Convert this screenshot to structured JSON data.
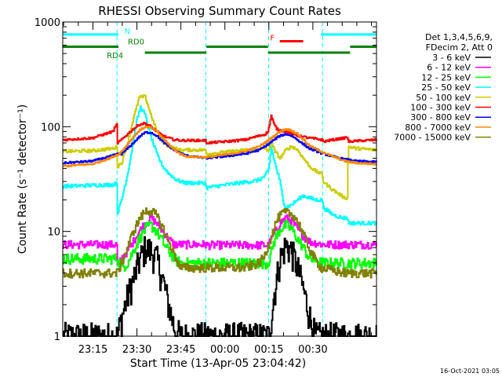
{
  "chart_data": {
    "type": "line",
    "title": "RHESSI Observing Summary Count Rates",
    "xlabel": "Start Time (13-Apr-05 23:04:42)",
    "ylabel": "Count Rate (s⁻¹ detector⁻¹)",
    "yscale": "log",
    "ylim": [
      1,
      1000
    ],
    "xlim_minutes": [
      0,
      107
    ],
    "x_ticks": [
      {
        "label": "23:15",
        "minute": 10.3
      },
      {
        "label": "23:30",
        "minute": 25.3
      },
      {
        "label": "23:45",
        "minute": 40.3
      },
      {
        "label": "00:00",
        "minute": 55.3
      },
      {
        "label": "00:15",
        "minute": 70.3
      },
      {
        "label": "00:30",
        "minute": 85.3
      }
    ],
    "y_ticks": [
      {
        "label": "1",
        "value": 1
      },
      {
        "label": "10",
        "value": 10
      },
      {
        "label": "100",
        "value": 100
      },
      {
        "label": "1000",
        "value": 1000
      }
    ],
    "legend_header": [
      "Det 1,3,4,5,6,9,",
      "FDecim 2, Att 0"
    ],
    "legend_position": "right",
    "footer_date": "16-Oct-2021 03:05",
    "flags": [
      {
        "name": "N",
        "label": "N",
        "color": "#00ffff",
        "level": 760,
        "segments": [
          [
            0,
            19
          ],
          [
            88,
            107
          ]
        ]
      },
      {
        "name": "F",
        "label": "F",
        "color": "#ff0000",
        "level": 655,
        "segments": [
          [
            74,
            82
          ]
        ]
      },
      {
        "name": "RD0",
        "label": "RD0",
        "color": "#008000",
        "level": 580,
        "segments": [
          [
            0,
            19
          ],
          [
            49,
            70
          ],
          [
            98,
            107
          ]
        ]
      },
      {
        "name": "RD4",
        "label": "RD4",
        "color": "#008000",
        "level": 510,
        "segments": [
          [
            28,
            49
          ],
          [
            70,
            98
          ]
        ]
      }
    ],
    "saa_lines_minutes": [
      0,
      18.5,
      48.8,
      70.2,
      88.6,
      107
    ],
    "series": [
      {
        "name": "3 - 6 keV",
        "color": "#000000",
        "noise": 0.35,
        "points": [
          [
            18.5,
            1
          ],
          [
            20,
            1.5
          ],
          [
            22,
            2.4
          ],
          [
            24,
            3.5
          ],
          [
            26,
            5.2
          ],
          [
            28,
            7
          ],
          [
            30,
            6.5
          ],
          [
            32,
            5.5
          ],
          [
            34,
            3.5
          ],
          [
            36,
            2
          ],
          [
            38,
            1.2
          ],
          [
            40,
            1
          ],
          [
            70.2,
            1
          ],
          [
            72,
            2.5
          ],
          [
            74,
            5.5
          ],
          [
            76,
            7.5
          ],
          [
            78,
            6.5
          ],
          [
            80,
            4.5
          ],
          [
            82,
            2.8
          ],
          [
            84,
            1.6
          ],
          [
            86,
            1
          ]
        ]
      },
      {
        "name": "6 - 12 keV",
        "color": "#ff00ff",
        "noise": 0.09,
        "points": [
          [
            0,
            7.5
          ],
          [
            18.4,
            7.5
          ],
          [
            18.6,
            4.6
          ],
          [
            20,
            5.5
          ],
          [
            22,
            6.5
          ],
          [
            24,
            8
          ],
          [
            26,
            10
          ],
          [
            28,
            12
          ],
          [
            30,
            13.5
          ],
          [
            32,
            12
          ],
          [
            34,
            10
          ],
          [
            36,
            8.5
          ],
          [
            38,
            7.5
          ],
          [
            48.7,
            7.5
          ],
          [
            49,
            7.4
          ],
          [
            70,
            7.4
          ],
          [
            72,
            9.5
          ],
          [
            74,
            12
          ],
          [
            76,
            13.5
          ],
          [
            78,
            12.5
          ],
          [
            80,
            10.5
          ],
          [
            82,
            9
          ],
          [
            84,
            8
          ],
          [
            88.5,
            7.5
          ],
          [
            107,
            7.5
          ]
        ]
      },
      {
        "name": "12 - 25 keV",
        "color": "#00ff00",
        "noise": 0.12,
        "points": [
          [
            0,
            5.5
          ],
          [
            18.5,
            5.5
          ],
          [
            20,
            4.5
          ],
          [
            22,
            5
          ],
          [
            24,
            6.5
          ],
          [
            26,
            8.5
          ],
          [
            28,
            10.5
          ],
          [
            30,
            11.5
          ],
          [
            32,
            10
          ],
          [
            34,
            8
          ],
          [
            36,
            6.5
          ],
          [
            38,
            5.5
          ],
          [
            40,
            5
          ],
          [
            48.8,
            5
          ],
          [
            70,
            5
          ],
          [
            72,
            8
          ],
          [
            74,
            10.5
          ],
          [
            76,
            11.5
          ],
          [
            78,
            10.5
          ],
          [
            80,
            8.5
          ],
          [
            82,
            7
          ],
          [
            84,
            5.5
          ],
          [
            88.5,
            5
          ],
          [
            107,
            5
          ]
        ]
      },
      {
        "name": "25 - 50 keV",
        "color": "#00ffff",
        "noise": 0.04,
        "points": [
          [
            0,
            27
          ],
          [
            17,
            28
          ],
          [
            18.4,
            29
          ],
          [
            18.6,
            15
          ],
          [
            20,
            20
          ],
          [
            22,
            35
          ],
          [
            23.5,
            60
          ],
          [
            25,
            110
          ],
          [
            26.5,
            155
          ],
          [
            28,
            130
          ],
          [
            30,
            80
          ],
          [
            32,
            55
          ],
          [
            34,
            42
          ],
          [
            36,
            36
          ],
          [
            38,
            32
          ],
          [
            40,
            30
          ],
          [
            42,
            29
          ],
          [
            44,
            29
          ],
          [
            46,
            29
          ],
          [
            48.7,
            29
          ],
          [
            48.9,
            26
          ],
          [
            52,
            27
          ],
          [
            56,
            28
          ],
          [
            60,
            29
          ],
          [
            64,
            30
          ],
          [
            67,
            31
          ],
          [
            69,
            34
          ],
          [
            70.3,
            40
          ],
          [
            71,
            65
          ],
          [
            72,
            48
          ],
          [
            73,
            38
          ],
          [
            74,
            30
          ],
          [
            75,
            20
          ],
          [
            76,
            17
          ],
          [
            78,
            18
          ],
          [
            80,
            20
          ],
          [
            82,
            22
          ],
          [
            84,
            21
          ],
          [
            86,
            20
          ],
          [
            88.5,
            20
          ],
          [
            88.7,
            17
          ],
          [
            92,
            14.5
          ],
          [
            95,
            13.5
          ],
          [
            97,
            13.5
          ],
          [
            97.3,
            12
          ],
          [
            107,
            12
          ]
        ]
      },
      {
        "name": "50 - 100 keV",
        "color": "#cccc00",
        "noise": 0.035,
        "points": [
          [
            0,
            58
          ],
          [
            10,
            59
          ],
          [
            17,
            62
          ],
          [
            18.4,
            64
          ],
          [
            18.6,
            42
          ],
          [
            20,
            45
          ],
          [
            22,
            70
          ],
          [
            24,
            120
          ],
          [
            26,
            190
          ],
          [
            28,
            195
          ],
          [
            30,
            130
          ],
          [
            32,
            90
          ],
          [
            34,
            72
          ],
          [
            36,
            65
          ],
          [
            38,
            62
          ],
          [
            40,
            60
          ],
          [
            48.7,
            60
          ],
          [
            48.9,
            55
          ],
          [
            55,
            57
          ],
          [
            62,
            60
          ],
          [
            67,
            62
          ],
          [
            69,
            62
          ],
          [
            70.2,
            58
          ],
          [
            71,
            75
          ],
          [
            72,
            60
          ],
          [
            74,
            50
          ],
          [
            76,
            60
          ],
          [
            78,
            65
          ],
          [
            80,
            60
          ],
          [
            82,
            50
          ],
          [
            84,
            42
          ],
          [
            86,
            38
          ],
          [
            88.5,
            35
          ],
          [
            88.7,
            30
          ],
          [
            92,
            25
          ],
          [
            96,
            21
          ],
          [
            97,
            21
          ],
          [
            97.3,
            65
          ],
          [
            100,
            62
          ],
          [
            107,
            60
          ]
        ]
      },
      {
        "name": "100 - 300 keV",
        "color": "#ff0000",
        "noise": 0.025,
        "points": [
          [
            0,
            75
          ],
          [
            10,
            78
          ],
          [
            17,
            90
          ],
          [
            18.4,
            105
          ],
          [
            18.6,
            70
          ],
          [
            20,
            75
          ],
          [
            22,
            85
          ],
          [
            24,
            95
          ],
          [
            26,
            105
          ],
          [
            28,
            108
          ],
          [
            30,
            100
          ],
          [
            32,
            90
          ],
          [
            34,
            82
          ],
          [
            36,
            78
          ],
          [
            38,
            75
          ],
          [
            40,
            74
          ],
          [
            48.7,
            74
          ],
          [
            48.9,
            70
          ],
          [
            55,
            72
          ],
          [
            62,
            75
          ],
          [
            67,
            82
          ],
          [
            69,
            85
          ],
          [
            70,
            90
          ],
          [
            70.3,
            100
          ],
          [
            71,
            128
          ],
          [
            72,
            105
          ],
          [
            73,
            95
          ],
          [
            74,
            92
          ],
          [
            76,
            90
          ],
          [
            78,
            86
          ],
          [
            80,
            82
          ],
          [
            84,
            78
          ],
          [
            88.5,
            75
          ],
          [
            88.7,
            72
          ],
          [
            92,
            75
          ],
          [
            96,
            78
          ],
          [
            97,
            80
          ],
          [
            97.3,
            72
          ],
          [
            100,
            73
          ],
          [
            107,
            75
          ]
        ]
      },
      {
        "name": "300 - 800 keV",
        "color": "#0000ff",
        "noise": 0.02,
        "points": [
          [
            0,
            45
          ],
          [
            10,
            47
          ],
          [
            16,
            52
          ],
          [
            18.5,
            55
          ],
          [
            20,
            55
          ],
          [
            22,
            62
          ],
          [
            24,
            70
          ],
          [
            26,
            80
          ],
          [
            28,
            88
          ],
          [
            30,
            88
          ],
          [
            32,
            82
          ],
          [
            34,
            72
          ],
          [
            36,
            65
          ],
          [
            38,
            60
          ],
          [
            40,
            56
          ],
          [
            42,
            53
          ],
          [
            48.8,
            50
          ],
          [
            55,
            52
          ],
          [
            62,
            55
          ],
          [
            67,
            60
          ],
          [
            70,
            68
          ],
          [
            72,
            75
          ],
          [
            74,
            82
          ],
          [
            76,
            85
          ],
          [
            78,
            82
          ],
          [
            80,
            75
          ],
          [
            82,
            68
          ],
          [
            84,
            62
          ],
          [
            88,
            56
          ],
          [
            92,
            52
          ],
          [
            96,
            49
          ],
          [
            100,
            47
          ],
          [
            107,
            46
          ]
        ]
      },
      {
        "name": "800 - 7000 keV",
        "color": "#ff8800",
        "noise": 0.02,
        "points": [
          [
            0,
            42
          ],
          [
            10,
            44
          ],
          [
            16,
            50
          ],
          [
            18.5,
            54
          ],
          [
            20,
            58
          ],
          [
            22,
            68
          ],
          [
            24,
            80
          ],
          [
            26,
            92
          ],
          [
            28,
            100
          ],
          [
            30,
            98
          ],
          [
            32,
            90
          ],
          [
            34,
            78
          ],
          [
            36,
            68
          ],
          [
            38,
            60
          ],
          [
            40,
            55
          ],
          [
            42,
            52
          ],
          [
            48.8,
            51
          ],
          [
            55,
            54
          ],
          [
            62,
            58
          ],
          [
            67,
            65
          ],
          [
            70,
            74
          ],
          [
            72,
            82
          ],
          [
            74,
            90
          ],
          [
            76,
            95
          ],
          [
            78,
            92
          ],
          [
            80,
            85
          ],
          [
            82,
            75
          ],
          [
            84,
            66
          ],
          [
            88,
            58
          ],
          [
            92,
            52
          ],
          [
            96,
            47
          ],
          [
            100,
            45
          ],
          [
            107,
            44
          ]
        ]
      },
      {
        "name": "7000 - 15000 keV",
        "color": "#808000",
        "noise": 0.1,
        "points": [
          [
            0,
            4
          ],
          [
            18.5,
            4
          ],
          [
            20,
            5
          ],
          [
            22,
            7
          ],
          [
            24,
            10
          ],
          [
            26,
            13
          ],
          [
            28,
            15.5
          ],
          [
            30,
            16
          ],
          [
            32,
            14
          ],
          [
            34,
            11
          ],
          [
            36,
            8
          ],
          [
            38,
            6
          ],
          [
            40,
            4.5
          ],
          [
            48.8,
            4.5
          ],
          [
            55,
            4.5
          ],
          [
            62,
            4.5
          ],
          [
            67,
            5
          ],
          [
            69,
            6
          ],
          [
            71,
            9
          ],
          [
            73,
            13
          ],
          [
            75,
            15
          ],
          [
            77,
            15
          ],
          [
            79,
            14
          ],
          [
            81,
            11
          ],
          [
            83,
            8
          ],
          [
            85,
            6
          ],
          [
            88,
            4.5
          ],
          [
            96,
            4
          ],
          [
            107,
            4
          ]
        ]
      }
    ]
  }
}
